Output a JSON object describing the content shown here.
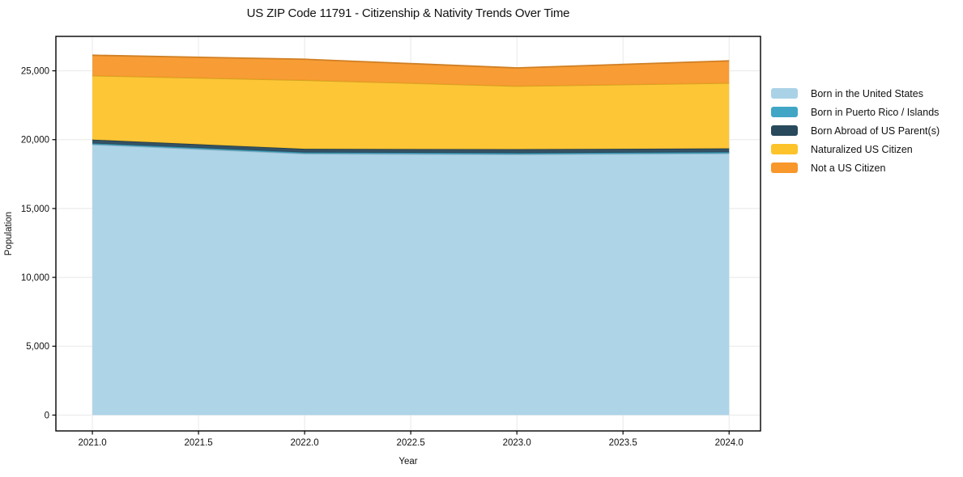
{
  "chart_data": {
    "type": "area",
    "stacked": true,
    "title": "US ZIP Code 11791 - Citizenship & Nativity Trends Over Time",
    "xlabel": "Year",
    "ylabel": "Population",
    "x": [
      2021,
      2022,
      2023,
      2024
    ],
    "series": [
      {
        "name": "Born in the United States",
        "color": "#AAD2E7",
        "values": [
          19650,
          18980,
          18930,
          19000
        ]
      },
      {
        "name": "Born in Puerto Rico / Islands",
        "color": "#41A6C5",
        "values": [
          80,
          90,
          90,
          90
        ]
      },
      {
        "name": "Born Abroad of US Parent(s)",
        "color": "#29495C",
        "values": [
          270,
          260,
          290,
          270
        ]
      },
      {
        "name": "Naturalized US Citizen",
        "color": "#FDC32B",
        "values": [
          4650,
          4990,
          4580,
          4750
        ]
      },
      {
        "name": "Not a US Citizen",
        "color": "#F8972A",
        "values": [
          1480,
          1520,
          1320,
          1610
        ]
      }
    ],
    "stack_totals": [
      26130,
      25840,
      25210,
      25720
    ],
    "x_ticks": [
      2021.0,
      2021.5,
      2022.0,
      2022.5,
      2023.0,
      2023.5,
      2024.0
    ],
    "x_tick_labels": [
      "2021.0",
      "2021.5",
      "2022.0",
      "2022.5",
      "2023.0",
      "2023.5",
      "2024.0"
    ],
    "y_ticks": [
      0,
      5000,
      10000,
      15000,
      20000,
      25000
    ],
    "y_tick_labels": [
      "0",
      "5,000",
      "10,000",
      "15,000",
      "20,000",
      "25,000"
    ],
    "xlim": [
      2020.828,
      2024.148
    ],
    "ylim": [
      -1150,
      27500
    ],
    "grid": true,
    "grid_color": "#e8e8e8",
    "spine_color": "#000000",
    "legend_position": "right"
  }
}
